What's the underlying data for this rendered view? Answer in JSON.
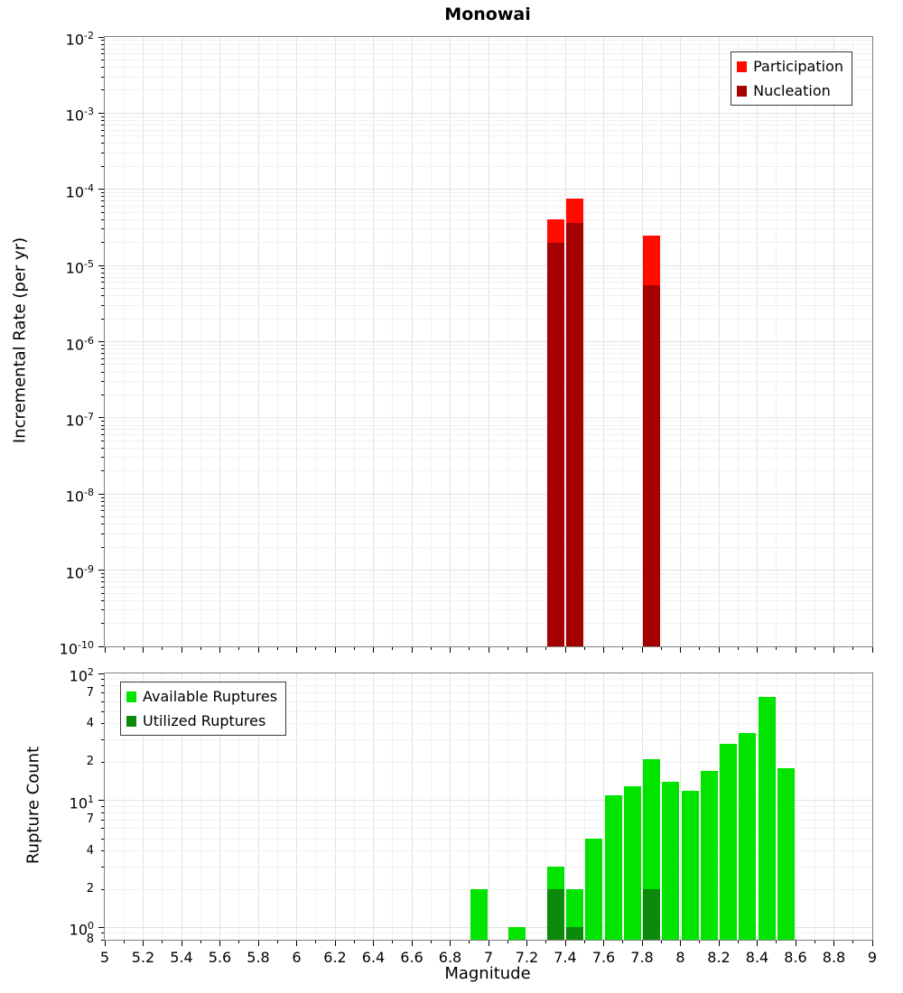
{
  "chart_data": [
    {
      "type": "bar",
      "title": "Monowai",
      "ylabel": "Incremental Rate (per yr)",
      "yscale": "log",
      "ylim": [
        1e-10,
        0.01
      ],
      "xlim": [
        5,
        9
      ],
      "bar_width": 0.09,
      "grid": true,
      "legend_position": "top-right",
      "y_ticks_exponents": [
        -2,
        -3,
        -4,
        -5,
        -6,
        -7,
        -8,
        -9,
        -10
      ],
      "series": [
        {
          "name": "Participation",
          "color": "#ff0b00",
          "points": [
            {
              "x": 7.35,
              "y": 4e-05
            },
            {
              "x": 7.45,
              "y": 7.5e-05
            },
            {
              "x": 7.85,
              "y": 2.5e-05
            }
          ]
        },
        {
          "name": "Nucleation",
          "color": "#a40000",
          "points": [
            {
              "x": 7.35,
              "y": 2e-05
            },
            {
              "x": 7.45,
              "y": 3.6e-05
            },
            {
              "x": 7.85,
              "y": 5.5e-06
            }
          ]
        }
      ]
    },
    {
      "type": "bar",
      "ylabel": "Rupture Count",
      "xlabel": "Magnitude",
      "yscale": "log",
      "ylim": [
        0.8,
        100
      ],
      "xlim": [
        5,
        9
      ],
      "bar_width": 0.09,
      "grid": true,
      "legend_position": "top-left",
      "y_ticks_exponents": [
        2,
        1,
        0
      ],
      "y_minor_labeled": [
        {
          "value": 70,
          "label": "7"
        },
        {
          "value": 40,
          "label": "4"
        },
        {
          "value": 20,
          "label": "2"
        },
        {
          "value": 7,
          "label": "7"
        },
        {
          "value": 4,
          "label": "4"
        },
        {
          "value": 2,
          "label": "2"
        },
        {
          "value": 0.8,
          "label": "8"
        }
      ],
      "x_tick_labels": [
        "5",
        "5.2",
        "5.4",
        "5.6",
        "5.8",
        "6",
        "6.2",
        "6.4",
        "6.6",
        "6.8",
        "7",
        "7.2",
        "7.4",
        "7.6",
        "7.8",
        "8",
        "8.2",
        "8.4",
        "8.6",
        "8.8",
        "9"
      ],
      "series": [
        {
          "name": "Available Ruptures",
          "color": "#00e400",
          "points": [
            {
              "x": 6.95,
              "y": 2
            },
            {
              "x": 7.15,
              "y": 1
            },
            {
              "x": 7.35,
              "y": 3
            },
            {
              "x": 7.45,
              "y": 2
            },
            {
              "x": 7.55,
              "y": 5
            },
            {
              "x": 7.65,
              "y": 11
            },
            {
              "x": 7.75,
              "y": 13
            },
            {
              "x": 7.85,
              "y": 21
            },
            {
              "x": 7.95,
              "y": 14
            },
            {
              "x": 8.05,
              "y": 12
            },
            {
              "x": 8.15,
              "y": 17
            },
            {
              "x": 8.25,
              "y": 28
            },
            {
              "x": 8.35,
              "y": 34
            },
            {
              "x": 8.45,
              "y": 65
            },
            {
              "x": 8.55,
              "y": 18
            }
          ]
        },
        {
          "name": "Utilized Ruptures",
          "color": "#0c8a0c",
          "points": [
            {
              "x": 7.35,
              "y": 2
            },
            {
              "x": 7.45,
              "y": 1
            },
            {
              "x": 7.85,
              "y": 2
            }
          ]
        }
      ]
    }
  ]
}
